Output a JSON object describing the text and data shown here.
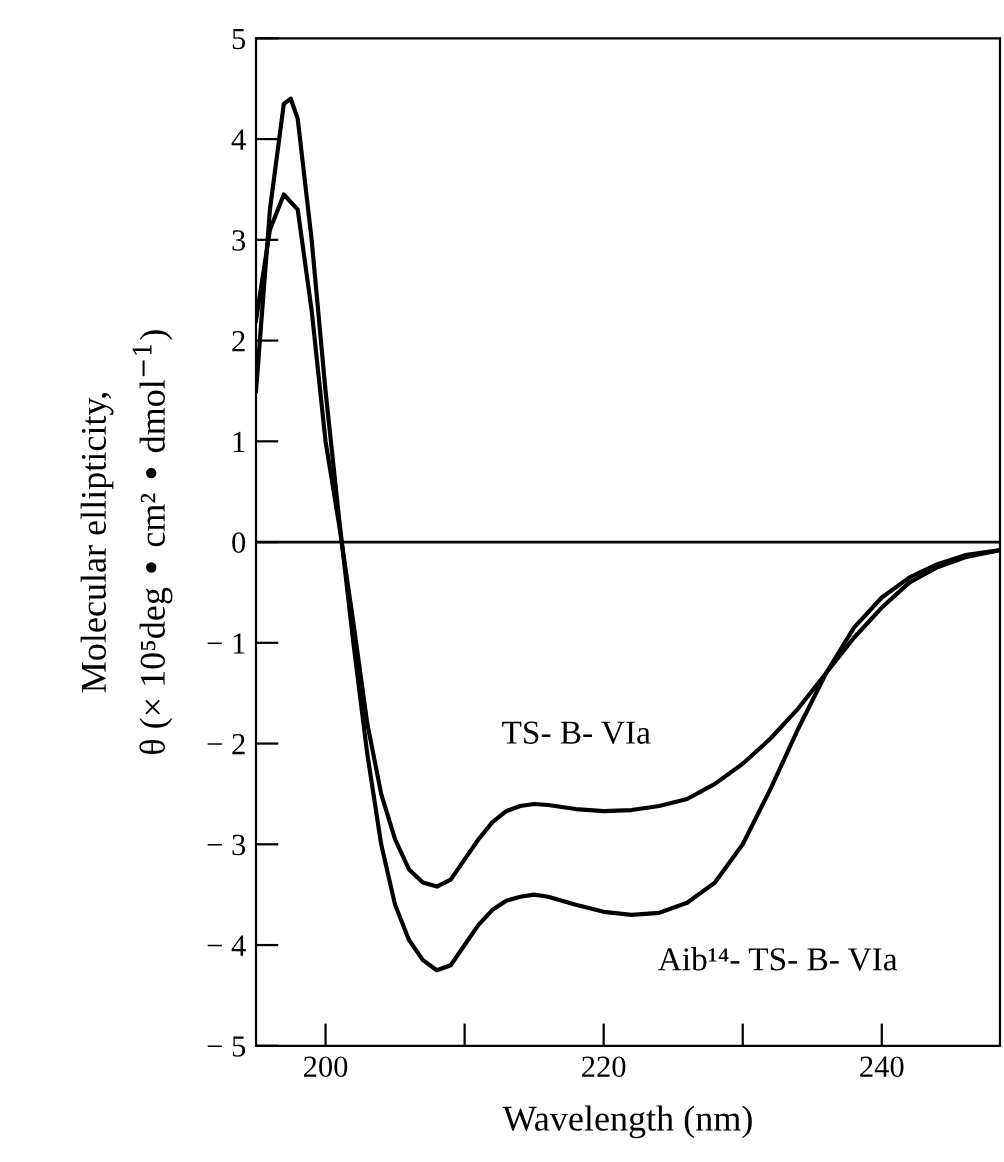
{
  "chart_data": {
    "type": "line",
    "xlabel": "Wavelength (nm)",
    "ylabel": "Molecular ellipticity,\nθ (× 10⁵deg • cm² • dmol$^{−1}$)",
    "xlim": [
      195,
      248.5
    ],
    "xticks": [
      200,
      {
        "value": 210,
        "label": null
      },
      220,
      {
        "value": 230,
        "label": null
      },
      240
    ],
    "ylim": [
      -5,
      5
    ],
    "yticks": [
      {
        "value": -5,
        "label": "− 5"
      },
      {
        "value": -4,
        "label": "− 4"
      },
      {
        "value": -3,
        "label": "− 3"
      },
      {
        "value": -2,
        "label": "− 2"
      },
      {
        "value": -1,
        "label": "− 1"
      },
      0,
      1,
      2,
      3,
      4,
      5
    ],
    "ref_lines": [
      {
        "axis": "y",
        "value": 0,
        "color": "#000000"
      }
    ],
    "grid": false,
    "legend": false,
    "marker": "none",
    "line_style": "solid",
    "series": [
      {
        "name": "TS- B- VIa",
        "color": "#000000",
        "x": [
          195,
          196,
          197,
          198,
          199,
          200,
          201,
          202,
          203,
          204,
          205,
          206,
          207,
          208,
          209,
          210,
          211,
          212,
          213,
          214,
          215,
          216,
          218,
          220,
          222,
          224,
          226,
          228,
          230,
          232,
          234,
          236,
          238,
          240,
          242,
          244,
          246,
          248.5
        ],
        "values": [
          2.2,
          3.1,
          3.45,
          3.3,
          2.3,
          1.0,
          0.15,
          -0.8,
          -1.8,
          -2.5,
          -2.95,
          -3.25,
          -3.38,
          -3.42,
          -3.35,
          -3.15,
          -2.95,
          -2.78,
          -2.67,
          -2.62,
          -2.6,
          -2.61,
          -2.65,
          -2.67,
          -2.66,
          -2.62,
          -2.55,
          -2.4,
          -2.2,
          -1.95,
          -1.65,
          -1.3,
          -0.95,
          -0.65,
          -0.4,
          -0.25,
          -0.15,
          -0.08
        ]
      },
      {
        "name": "Aib¹⁴- TS- B- VIa",
        "color": "#000000",
        "x": [
          195,
          196,
          197,
          197.5,
          198,
          199,
          200,
          201,
          202,
          203,
          204,
          205,
          206,
          207,
          208,
          209,
          210,
          211,
          212,
          213,
          214,
          215,
          216,
          218,
          220,
          222,
          224,
          226,
          228,
          230,
          232,
          234,
          236,
          238,
          240,
          242,
          244,
          246,
          248.5
        ],
        "values": [
          1.5,
          3.3,
          4.35,
          4.4,
          4.2,
          3.0,
          1.5,
          0.2,
          -1.0,
          -2.1,
          -3.0,
          -3.6,
          -3.95,
          -4.15,
          -4.25,
          -4.2,
          -4.0,
          -3.8,
          -3.65,
          -3.56,
          -3.52,
          -3.5,
          -3.52,
          -3.6,
          -3.67,
          -3.7,
          -3.68,
          -3.58,
          -3.38,
          -3.0,
          -2.45,
          -1.85,
          -1.3,
          -0.85,
          -0.55,
          -0.35,
          -0.22,
          -0.13,
          -0.08
        ]
      }
    ]
  }
}
